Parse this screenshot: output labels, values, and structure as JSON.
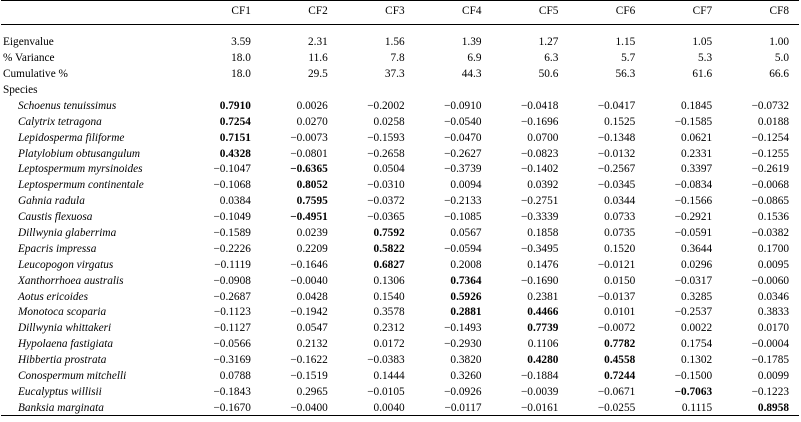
{
  "columns": [
    "CF1",
    "CF2",
    "CF3",
    "CF4",
    "CF5",
    "CF6",
    "CF7",
    "CF8"
  ],
  "summary_rows": [
    {
      "label": "Eigenvalue",
      "values": [
        "3.59",
        "2.31",
        "1.56",
        "1.39",
        "1.27",
        "1.15",
        "1.05",
        "1.00"
      ]
    },
    {
      "label": "% Variance",
      "values": [
        "18.0",
        "11.6",
        "7.8",
        "6.9",
        "6.3",
        "5.7",
        "5.3",
        "5.0"
      ]
    },
    {
      "label": "Cumulative %",
      "values": [
        "18.0",
        "29.5",
        "37.3",
        "44.3",
        "50.6",
        "56.3",
        "61.6",
        "66.6"
      ]
    }
  ],
  "species_heading": "Species",
  "species_rows": [
    {
      "name": "Schoenus tenuissimus",
      "values": [
        "0.7910",
        "0.0026",
        "−0.2002",
        "−0.0910",
        "−0.0418",
        "−0.0417",
        "0.1845",
        "−0.0732"
      ],
      "bold": [
        0
      ]
    },
    {
      "name": "Calytrix tetragona",
      "values": [
        "0.7254",
        "0.0270",
        "0.0258",
        "−0.0540",
        "−0.1696",
        "0.1525",
        "−0.1585",
        "0.0188"
      ],
      "bold": [
        0
      ]
    },
    {
      "name": "Lepidosperma filiforme",
      "values": [
        "0.7151",
        "−0.0073",
        "−0.1593",
        "−0.0470",
        "0.0700",
        "−0.1348",
        "0.0621",
        "−0.1254"
      ],
      "bold": [
        0
      ]
    },
    {
      "name": "Platylobium obtusangulum",
      "values": [
        "0.4328",
        "−0.0801",
        "−0.2658",
        "−0.2627",
        "−0.0823",
        "−0.0132",
        "0.2331",
        "−0.1255"
      ],
      "bold": [
        0
      ]
    },
    {
      "name": "Leptospermum myrsinoides",
      "values": [
        "−0.1047",
        "−0.6365",
        "0.0504",
        "−0.3739",
        "−0.1402",
        "−0.2567",
        "0.3397",
        "−0.2619"
      ],
      "bold": [
        1
      ]
    },
    {
      "name": "Leptospermum continentale",
      "values": [
        "−0.1068",
        "0.8052",
        "−0.0310",
        "0.0094",
        "0.0392",
        "−0.0345",
        "−0.0834",
        "−0.0068"
      ],
      "bold": [
        1
      ]
    },
    {
      "name": "Gahnia radula",
      "values": [
        "0.0384",
        "0.7595",
        "−0.0372",
        "−0.2133",
        "−0.2751",
        "0.0344",
        "−0.1566",
        "−0.0865"
      ],
      "bold": [
        1
      ]
    },
    {
      "name": "Caustis flexuosa",
      "values": [
        "−0.1049",
        "−0.4951",
        "−0.0365",
        "−0.1085",
        "−0.3339",
        "0.0733",
        "−0.2921",
        "0.1536"
      ],
      "bold": [
        1
      ]
    },
    {
      "name": "Dillwynia glaberrima",
      "values": [
        "−0.1589",
        "0.0239",
        "0.7592",
        "0.0567",
        "0.1858",
        "0.0735",
        "−0.0591",
        "−0.0382"
      ],
      "bold": [
        2
      ]
    },
    {
      "name": "Epacris impressa",
      "values": [
        "−0.2226",
        "0.2209",
        "0.5822",
        "−0.0594",
        "−0.3495",
        "0.1520",
        "0.3644",
        "0.1700"
      ],
      "bold": [
        2
      ]
    },
    {
      "name": "Leucopogon virgatus",
      "values": [
        "−0.1119",
        "−0.1646",
        "0.6827",
        "0.2008",
        "0.1476",
        "−0.0121",
        "0.0296",
        "0.0095"
      ],
      "bold": [
        2
      ]
    },
    {
      "name": "Xanthorrhoea australis",
      "values": [
        "−0.0908",
        "−0.0040",
        "0.1306",
        "0.7364",
        "−0.1690",
        "0.0150",
        "−0.0317",
        "−0.0060"
      ],
      "bold": [
        3
      ]
    },
    {
      "name": "Aotus ericoides",
      "values": [
        "−0.2687",
        "0.0428",
        "0.1540",
        "0.5926",
        "0.2381",
        "−0.0137",
        "0.3285",
        "0.0346"
      ],
      "bold": [
        3
      ]
    },
    {
      "name": "Monotoca scoparia",
      "values": [
        "−0.1123",
        "−0.1942",
        "0.3578",
        "0.2881",
        "0.4466",
        "0.0101",
        "−0.2537",
        "0.3833"
      ],
      "bold": [
        3,
        4
      ]
    },
    {
      "name": "Dillwynia whittakeri",
      "values": [
        "−0.1127",
        "0.0547",
        "0.2312",
        "−0.1493",
        "0.7739",
        "−0.0072",
        "0.0022",
        "0.0170"
      ],
      "bold": [
        4
      ]
    },
    {
      "name": "Hypolaena fastigiata",
      "values": [
        "−0.0566",
        "0.2132",
        "0.0172",
        "−0.2930",
        "0.1106",
        "0.7782",
        "0.1754",
        "−0.0004"
      ],
      "bold": [
        5
      ]
    },
    {
      "name": "Hibbertia prostrata",
      "values": [
        "−0.3169",
        "−0.1622",
        "−0.0383",
        "0.3820",
        "0.4280",
        "0.4558",
        "0.1302",
        "−0.1785"
      ],
      "bold": [
        4,
        5
      ]
    },
    {
      "name": "Conospermum mitchelli",
      "values": [
        "0.0788",
        "−0.1519",
        "0.1444",
        "0.3260",
        "−0.1884",
        "0.7244",
        "−0.1500",
        "0.0099"
      ],
      "bold": [
        5
      ]
    },
    {
      "name": "Eucalyptus willisii",
      "values": [
        "−0.1843",
        "0.2965",
        "−0.0105",
        "−0.0926",
        "−0.0039",
        "−0.0671",
        "−0.7063",
        "−0.1223"
      ],
      "bold": [
        6
      ]
    },
    {
      "name": "Banksia marginata",
      "values": [
        "−0.1670",
        "−0.0400",
        "0.0040",
        "−0.0117",
        "−0.0161",
        "−0.0255",
        "0.1115",
        "0.8958"
      ],
      "bold": [
        7
      ]
    }
  ]
}
